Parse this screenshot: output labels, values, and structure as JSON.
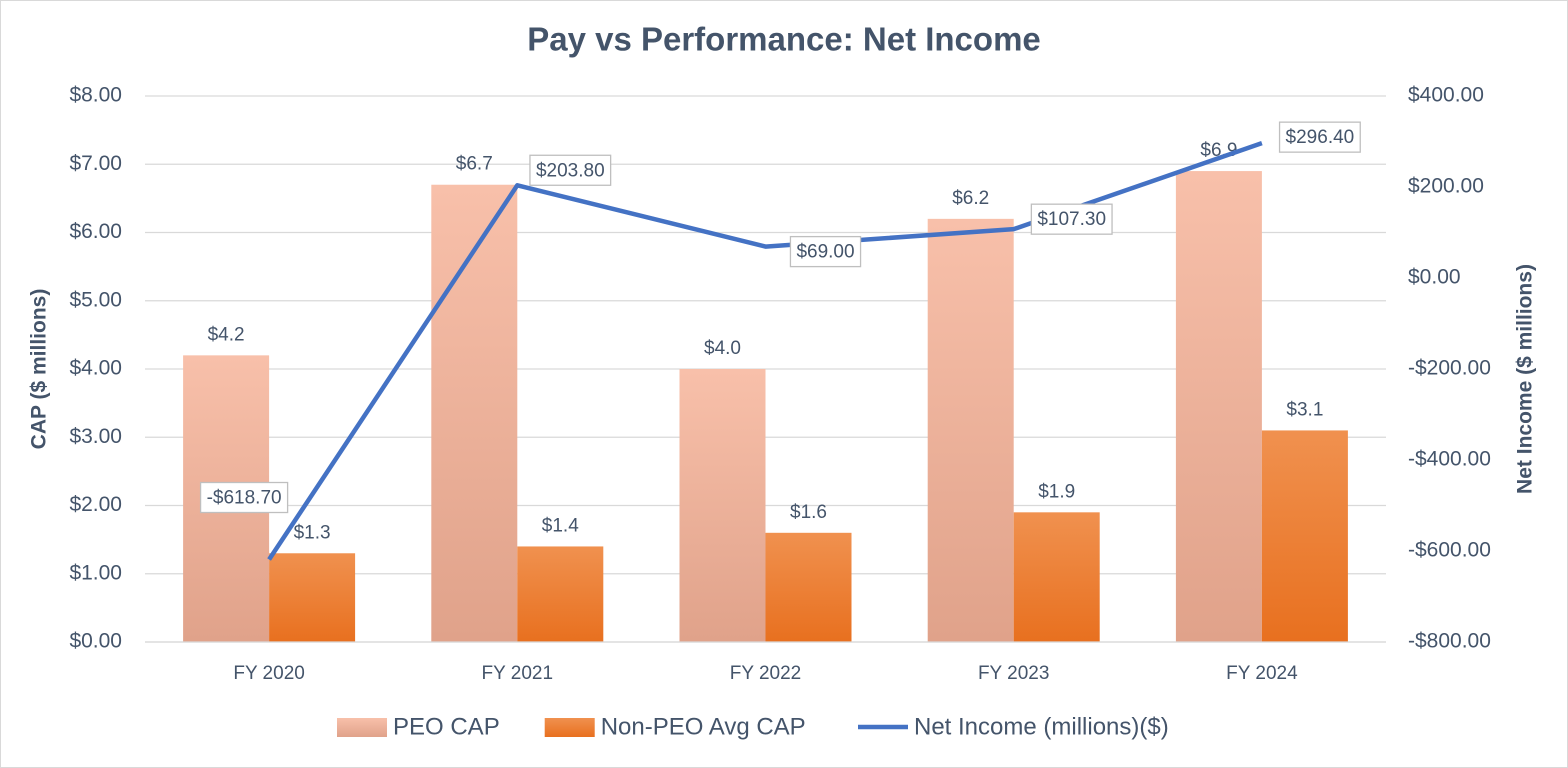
{
  "chart_data": {
    "type": "bar_line",
    "title": "Pay vs Performance: Net Income",
    "y_label": "CAP ($ millions)",
    "y2_label": "Net Income ($ millions)",
    "categories": [
      "FY 2020",
      "FY 2021",
      "FY 2022",
      "FY 2023",
      "FY 2024"
    ],
    "series": [
      {
        "name": "PEO CAP",
        "type": "bar",
        "color": "#f4b59c",
        "values": [
          4.2,
          6.7,
          4.0,
          6.2,
          6.9
        ],
        "value_labels": [
          "$4.2",
          "$6.7",
          "$4.0",
          "$6.2",
          "$6.9"
        ]
      },
      {
        "name": "Non-PEO Avg CAP",
        "type": "bar",
        "color": "#ee7d31",
        "values": [
          1.3,
          1.4,
          1.6,
          1.9,
          3.1
        ],
        "value_labels": [
          "$1.3",
          "$1.4",
          "$1.6",
          "$1.9",
          "$3.1"
        ]
      },
      {
        "name": "Net Income (millions)($)",
        "type": "line",
        "axis": "y2",
        "color": "#4472c4",
        "values": [
          -618.7,
          203.8,
          69.0,
          107.3,
          296.4
        ],
        "value_labels": [
          "-$618.70",
          "$203.80",
          "$69.00",
          "$107.30",
          "$296.40"
        ]
      }
    ],
    "ylim": [
      0,
      8
    ],
    "yticks": [
      {
        "value": 0,
        "label": "$0.00"
      },
      {
        "value": 1,
        "label": "$1.00"
      },
      {
        "value": 2,
        "label": "$2.00"
      },
      {
        "value": 3,
        "label": "$3.00"
      },
      {
        "value": 4,
        "label": "$4.00"
      },
      {
        "value": 5,
        "label": "$5.00"
      },
      {
        "value": 6,
        "label": "$6.00"
      },
      {
        "value": 7,
        "label": "$7.00"
      },
      {
        "value": 8,
        "label": "$8.00"
      }
    ],
    "y2lim": [
      -800,
      400
    ],
    "y2ticks": [
      {
        "value": -800,
        "label": "-$800.00"
      },
      {
        "value": -600,
        "label": "-$600.00"
      },
      {
        "value": -400,
        "label": "-$400.00"
      },
      {
        "value": -200,
        "label": "-$200.00"
      },
      {
        "value": 0,
        "label": "$0.00"
      },
      {
        "value": 200,
        "label": "$200.00"
      },
      {
        "value": 400,
        "label": "$400.00"
      }
    ],
    "grid": true,
    "legend": "bottom"
  }
}
